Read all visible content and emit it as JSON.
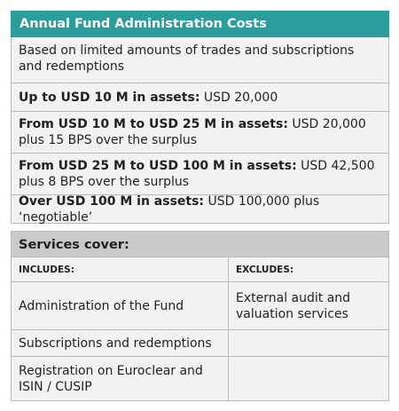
{
  "header": {
    "title": "Annual Fund Administration Costs"
  },
  "pricing": {
    "note": "Based on limited amounts of trades and subscriptions and redemptions",
    "tiers": [
      {
        "label": "Up to USD 10 M in assets:",
        "text": "USD 20,000"
      },
      {
        "label": "From USD 10 M to USD 25 M in assets:",
        "text": "USD 20,000 plus 15 BPS over the surplus"
      },
      {
        "label": "From USD 25 M to USD 100 M in assets:",
        "text": "USD 42,500 plus 8 BPS over the surplus"
      },
      {
        "label": "Over USD 100 M in assets:",
        "text": "USD 100,000 plus ‘negotiable’"
      }
    ]
  },
  "services": {
    "title": "Services cover:",
    "columns": [
      "INCLUDES:",
      "EXCLUDES:"
    ],
    "rows": [
      [
        "Administration of the Fund",
        "External audit and valuation services"
      ],
      [
        "Subscriptions and redemptions",
        null
      ],
      [
        "Registration on Euroclear and ISIN / CUSIP",
        null
      ]
    ]
  }
}
